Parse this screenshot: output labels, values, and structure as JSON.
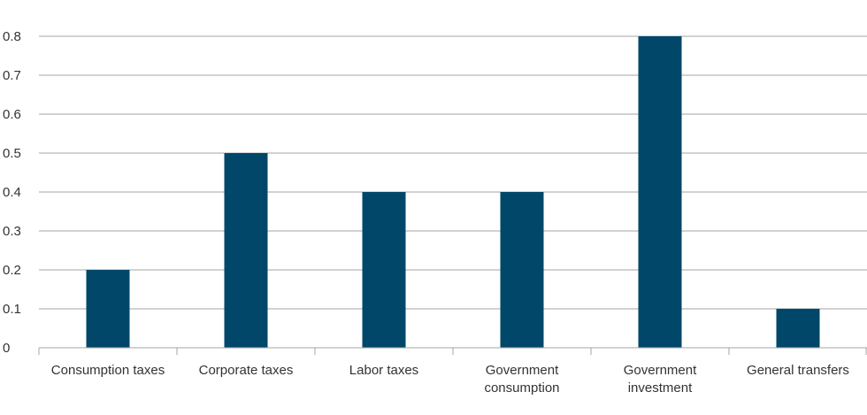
{
  "chart_data": {
    "type": "bar",
    "title": "",
    "xlabel": "",
    "ylabel": "",
    "categories": [
      "Consumption taxes",
      "Corporate taxes",
      "Labor taxes",
      "Government consumption",
      "Government investment",
      "General transfers"
    ],
    "category_lines": [
      [
        "Consumption taxes"
      ],
      [
        "Corporate taxes"
      ],
      [
        "Labor taxes"
      ],
      [
        "Government",
        "consumption"
      ],
      [
        "Government",
        "investment"
      ],
      [
        "General transfers"
      ]
    ],
    "values": [
      0.2,
      0.5,
      0.4,
      0.4,
      0.8,
      0.1
    ],
    "ylim": [
      0,
      0.8
    ],
    "yticks": [
      0,
      0.1,
      0.2,
      0.3,
      0.4,
      0.5,
      0.6,
      0.7,
      0.8
    ],
    "ytick_labels": [
      "0",
      "0.1",
      "0.2",
      "0.3",
      "0.4",
      "0.5",
      "0.6",
      "0.7",
      "0.8"
    ],
    "grid": true,
    "legend": "none",
    "colors": {
      "bar": "#00476A",
      "grid": "#A6A6A6",
      "axis": "#A6A6A6",
      "text": "#333333"
    }
  }
}
